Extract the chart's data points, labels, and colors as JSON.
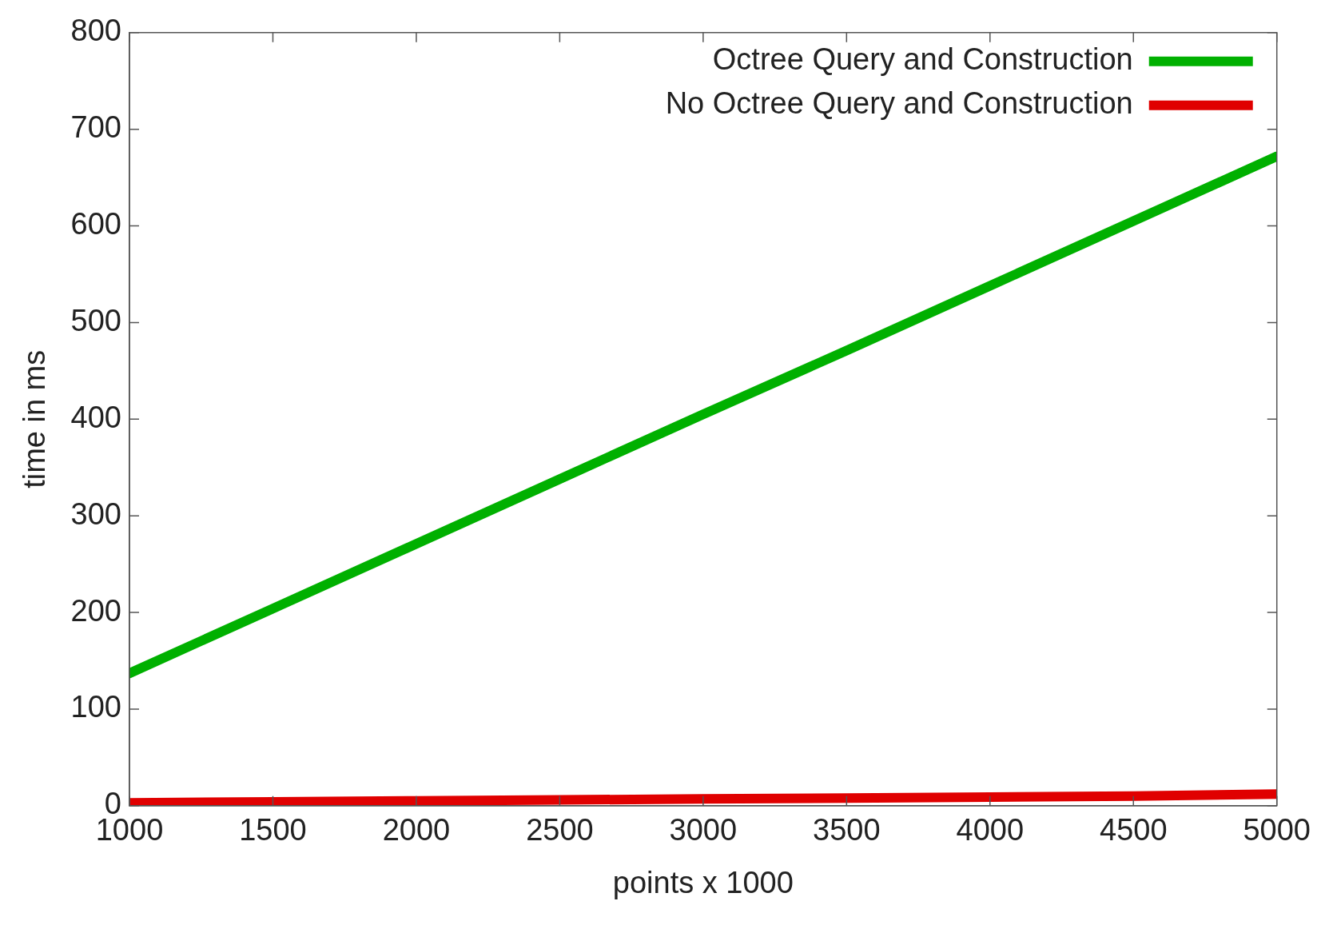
{
  "chart_data": {
    "type": "line",
    "xlabel": "points x 1000",
    "ylabel": "time in ms",
    "x": [
      1000,
      1500,
      2000,
      2500,
      3000,
      3500,
      4000,
      4500,
      5000
    ],
    "series": [
      {
        "name": "Octree Query and Construction",
        "color": "#00b000",
        "values": [
          137,
          204,
          271,
          338,
          405,
          471,
          538,
          605,
          672
        ]
      },
      {
        "name": "No Octree Query and Construction",
        "color": "#e00000",
        "values": [
          3,
          4,
          5,
          6,
          7,
          8,
          9,
          10,
          12
        ]
      }
    ],
    "xlim": [
      1000,
      5000
    ],
    "xticks": [
      1000,
      1500,
      2000,
      2500,
      3000,
      3500,
      4000,
      4500,
      5000
    ],
    "ylim": [
      0,
      800
    ],
    "yticks": [
      0,
      100,
      200,
      300,
      400,
      500,
      600,
      700,
      800
    ],
    "grid": false,
    "legend": "top right",
    "marker": "none",
    "line_style": "solid"
  }
}
